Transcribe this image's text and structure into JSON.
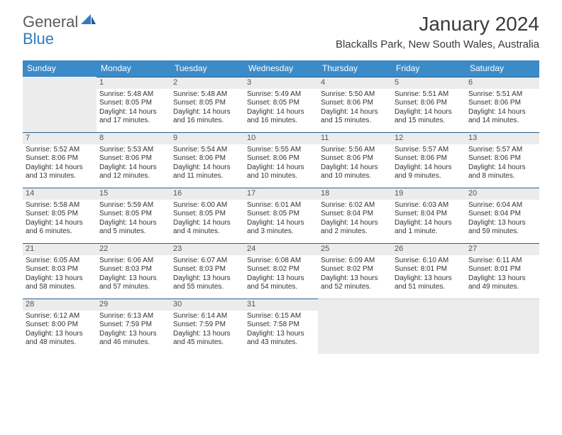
{
  "brand": {
    "part1": "General",
    "part2": "Blue",
    "accent_color": "#2f7bbf",
    "text_color": "#5a5a5a"
  },
  "title": "January 2024",
  "location": "Blackalls Park, New South Wales, Australia",
  "colors": {
    "header_bg": "#3b8bc8",
    "header_text": "#ffffff",
    "daynum_bg": "#ececec",
    "cell_border": "#2a5f8a",
    "body_text": "#333333"
  },
  "day_headers": [
    "Sunday",
    "Monday",
    "Tuesday",
    "Wednesday",
    "Thursday",
    "Friday",
    "Saturday"
  ],
  "first_weekday_offset": 1,
  "days": [
    {
      "n": 1,
      "sunrise": "5:48 AM",
      "sunset": "8:05 PM",
      "daylight": "14 hours and 17 minutes."
    },
    {
      "n": 2,
      "sunrise": "5:48 AM",
      "sunset": "8:05 PM",
      "daylight": "14 hours and 16 minutes."
    },
    {
      "n": 3,
      "sunrise": "5:49 AM",
      "sunset": "8:05 PM",
      "daylight": "14 hours and 16 minutes."
    },
    {
      "n": 4,
      "sunrise": "5:50 AM",
      "sunset": "8:06 PM",
      "daylight": "14 hours and 15 minutes."
    },
    {
      "n": 5,
      "sunrise": "5:51 AM",
      "sunset": "8:06 PM",
      "daylight": "14 hours and 15 minutes."
    },
    {
      "n": 6,
      "sunrise": "5:51 AM",
      "sunset": "8:06 PM",
      "daylight": "14 hours and 14 minutes."
    },
    {
      "n": 7,
      "sunrise": "5:52 AM",
      "sunset": "8:06 PM",
      "daylight": "14 hours and 13 minutes."
    },
    {
      "n": 8,
      "sunrise": "5:53 AM",
      "sunset": "8:06 PM",
      "daylight": "14 hours and 12 minutes."
    },
    {
      "n": 9,
      "sunrise": "5:54 AM",
      "sunset": "8:06 PM",
      "daylight": "14 hours and 11 minutes."
    },
    {
      "n": 10,
      "sunrise": "5:55 AM",
      "sunset": "8:06 PM",
      "daylight": "14 hours and 10 minutes."
    },
    {
      "n": 11,
      "sunrise": "5:56 AM",
      "sunset": "8:06 PM",
      "daylight": "14 hours and 10 minutes."
    },
    {
      "n": 12,
      "sunrise": "5:57 AM",
      "sunset": "8:06 PM",
      "daylight": "14 hours and 9 minutes."
    },
    {
      "n": 13,
      "sunrise": "5:57 AM",
      "sunset": "8:06 PM",
      "daylight": "14 hours and 8 minutes."
    },
    {
      "n": 14,
      "sunrise": "5:58 AM",
      "sunset": "8:05 PM",
      "daylight": "14 hours and 6 minutes."
    },
    {
      "n": 15,
      "sunrise": "5:59 AM",
      "sunset": "8:05 PM",
      "daylight": "14 hours and 5 minutes."
    },
    {
      "n": 16,
      "sunrise": "6:00 AM",
      "sunset": "8:05 PM",
      "daylight": "14 hours and 4 minutes."
    },
    {
      "n": 17,
      "sunrise": "6:01 AM",
      "sunset": "8:05 PM",
      "daylight": "14 hours and 3 minutes."
    },
    {
      "n": 18,
      "sunrise": "6:02 AM",
      "sunset": "8:04 PM",
      "daylight": "14 hours and 2 minutes."
    },
    {
      "n": 19,
      "sunrise": "6:03 AM",
      "sunset": "8:04 PM",
      "daylight": "14 hours and 1 minute."
    },
    {
      "n": 20,
      "sunrise": "6:04 AM",
      "sunset": "8:04 PM",
      "daylight": "13 hours and 59 minutes."
    },
    {
      "n": 21,
      "sunrise": "6:05 AM",
      "sunset": "8:03 PM",
      "daylight": "13 hours and 58 minutes."
    },
    {
      "n": 22,
      "sunrise": "6:06 AM",
      "sunset": "8:03 PM",
      "daylight": "13 hours and 57 minutes."
    },
    {
      "n": 23,
      "sunrise": "6:07 AM",
      "sunset": "8:03 PM",
      "daylight": "13 hours and 55 minutes."
    },
    {
      "n": 24,
      "sunrise": "6:08 AM",
      "sunset": "8:02 PM",
      "daylight": "13 hours and 54 minutes."
    },
    {
      "n": 25,
      "sunrise": "6:09 AM",
      "sunset": "8:02 PM",
      "daylight": "13 hours and 52 minutes."
    },
    {
      "n": 26,
      "sunrise": "6:10 AM",
      "sunset": "8:01 PM",
      "daylight": "13 hours and 51 minutes."
    },
    {
      "n": 27,
      "sunrise": "6:11 AM",
      "sunset": "8:01 PM",
      "daylight": "13 hours and 49 minutes."
    },
    {
      "n": 28,
      "sunrise": "6:12 AM",
      "sunset": "8:00 PM",
      "daylight": "13 hours and 48 minutes."
    },
    {
      "n": 29,
      "sunrise": "6:13 AM",
      "sunset": "7:59 PM",
      "daylight": "13 hours and 46 minutes."
    },
    {
      "n": 30,
      "sunrise": "6:14 AM",
      "sunset": "7:59 PM",
      "daylight": "13 hours and 45 minutes."
    },
    {
      "n": 31,
      "sunrise": "6:15 AM",
      "sunset": "7:58 PM",
      "daylight": "13 hours and 43 minutes."
    }
  ],
  "labels": {
    "sunrise": "Sunrise:",
    "sunset": "Sunset:",
    "daylight": "Daylight:"
  }
}
